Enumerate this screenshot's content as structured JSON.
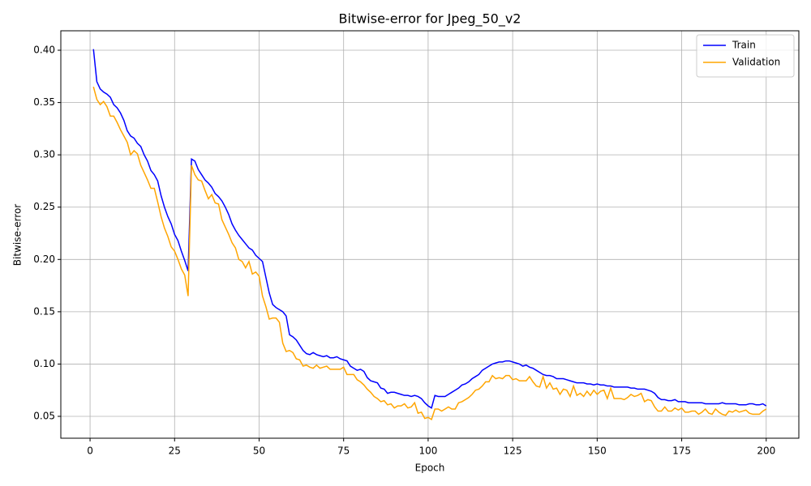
{
  "chart_data": {
    "type": "line",
    "title": "Bitwise-error for Jpeg_50_v2",
    "x_label": "Epoch",
    "y_label": "Bitwise-error",
    "grid": true,
    "legend": "upper right",
    "xlim": [
      -8.65,
      209.65
    ],
    "ylim": [
      0.0291,
      0.4186
    ],
    "xticks": [
      0,
      25,
      50,
      75,
      100,
      125,
      150,
      175,
      200
    ],
    "yticks": [
      0.05,
      {
        "value": 0.1,
        "label": "0.10"
      },
      0.15,
      {
        "value": 0.2,
        "label": "0.20"
      },
      0.25,
      {
        "value": 0.3,
        "label": "0.30"
      },
      0.35,
      {
        "value": 0.4,
        "label": "0.40"
      }
    ],
    "x": [
      1,
      2,
      3,
      4,
      5,
      6,
      7,
      8,
      9,
      10,
      11,
      12,
      13,
      14,
      15,
      16,
      17,
      18,
      19,
      20,
      21,
      22,
      23,
      24,
      25,
      26,
      27,
      28,
      29,
      30,
      31,
      32,
      33,
      34,
      35,
      36,
      37,
      38,
      39,
      40,
      41,
      42,
      43,
      44,
      45,
      46,
      47,
      48,
      49,
      50,
      51,
      52,
      53,
      54,
      55,
      56,
      57,
      58,
      59,
      60,
      61,
      62,
      63,
      64,
      65,
      66,
      67,
      68,
      69,
      70,
      71,
      72,
      73,
      74,
      75,
      76,
      77,
      78,
      79,
      80,
      81,
      82,
      83,
      84,
      85,
      86,
      87,
      88,
      89,
      90,
      91,
      92,
      93,
      94,
      95,
      96,
      97,
      98,
      99,
      100,
      101,
      102,
      103,
      104,
      105,
      106,
      107,
      108,
      109,
      110,
      111,
      112,
      113,
      114,
      115,
      116,
      117,
      118,
      119,
      120,
      121,
      122,
      123,
      124,
      125,
      126,
      127,
      128,
      129,
      130,
      131,
      132,
      133,
      134,
      135,
      136,
      137,
      138,
      139,
      140,
      141,
      142,
      143,
      144,
      145,
      146,
      147,
      148,
      149,
      150,
      151,
      152,
      153,
      154,
      155,
      156,
      157,
      158,
      159,
      160,
      161,
      162,
      163,
      164,
      165,
      166,
      167,
      168,
      169,
      170,
      171,
      172,
      173,
      174,
      175,
      176,
      177,
      178,
      179,
      180,
      181,
      182,
      183,
      184,
      185,
      186,
      187,
      188,
      189,
      190,
      191,
      192,
      193,
      194,
      195,
      196,
      197,
      198,
      199,
      200
    ],
    "series": [
      {
        "name": "Train",
        "color": "#0000ff",
        "values": [
          0.401,
          0.37,
          0.363,
          0.36,
          0.358,
          0.355,
          0.348,
          0.345,
          0.34,
          0.333,
          0.323,
          0.318,
          0.316,
          0.311,
          0.308,
          0.3,
          0.294,
          0.285,
          0.281,
          0.275,
          0.261,
          0.25,
          0.241,
          0.234,
          0.224,
          0.218,
          0.208,
          0.199,
          0.189,
          0.296,
          0.294,
          0.286,
          0.281,
          0.276,
          0.273,
          0.269,
          0.263,
          0.26,
          0.256,
          0.25,
          0.243,
          0.234,
          0.228,
          0.223,
          0.219,
          0.215,
          0.211,
          0.209,
          0.204,
          0.201,
          0.198,
          0.183,
          0.168,
          0.157,
          0.154,
          0.152,
          0.15,
          0.146,
          0.128,
          0.126,
          0.123,
          0.118,
          0.113,
          0.11,
          0.109,
          0.111,
          0.109,
          0.108,
          0.107,
          0.108,
          0.106,
          0.106,
          0.107,
          0.105,
          0.104,
          0.103,
          0.098,
          0.096,
          0.094,
          0.095,
          0.093,
          0.087,
          0.084,
          0.083,
          0.082,
          0.077,
          0.076,
          0.072,
          0.073,
          0.073,
          0.072,
          0.071,
          0.07,
          0.07,
          0.069,
          0.07,
          0.069,
          0.067,
          0.063,
          0.06,
          0.058,
          0.07,
          0.069,
          0.069,
          0.069,
          0.071,
          0.073,
          0.075,
          0.077,
          0.08,
          0.081,
          0.083,
          0.086,
          0.088,
          0.09,
          0.094,
          0.096,
          0.098,
          0.1,
          0.101,
          0.102,
          0.102,
          0.103,
          0.103,
          0.102,
          0.101,
          0.1,
          0.098,
          0.099,
          0.097,
          0.096,
          0.094,
          0.092,
          0.09,
          0.089,
          0.089,
          0.088,
          0.086,
          0.086,
          0.086,
          0.085,
          0.084,
          0.083,
          0.082,
          0.082,
          0.082,
          0.081,
          0.081,
          0.08,
          0.081,
          0.08,
          0.08,
          0.079,
          0.079,
          0.078,
          0.078,
          0.078,
          0.078,
          0.078,
          0.077,
          0.077,
          0.076,
          0.076,
          0.076,
          0.075,
          0.074,
          0.072,
          0.068,
          0.066,
          0.066,
          0.065,
          0.065,
          0.066,
          0.064,
          0.064,
          0.064,
          0.063,
          0.063,
          0.063,
          0.063,
          0.063,
          0.062,
          0.062,
          0.062,
          0.062,
          0.062,
          0.063,
          0.062,
          0.062,
          0.062,
          0.062,
          0.061,
          0.061,
          0.061,
          0.062,
          0.062,
          0.061,
          0.061,
          0.062,
          0.06
        ]
      },
      {
        "name": "Validation",
        "color": "#ffa500",
        "values": [
          0.365,
          0.353,
          0.348,
          0.351,
          0.346,
          0.337,
          0.337,
          0.331,
          0.324,
          0.318,
          0.312,
          0.3,
          0.304,
          0.301,
          0.29,
          0.283,
          0.276,
          0.268,
          0.268,
          0.255,
          0.241,
          0.23,
          0.222,
          0.212,
          0.208,
          0.2,
          0.191,
          0.185,
          0.165,
          0.29,
          0.281,
          0.276,
          0.275,
          0.266,
          0.258,
          0.262,
          0.254,
          0.253,
          0.238,
          0.231,
          0.224,
          0.216,
          0.211,
          0.2,
          0.198,
          0.192,
          0.198,
          0.186,
          0.188,
          0.184,
          0.165,
          0.155,
          0.143,
          0.144,
          0.144,
          0.14,
          0.12,
          0.112,
          0.113,
          0.111,
          0.105,
          0.104,
          0.098,
          0.099,
          0.097,
          0.096,
          0.099,
          0.096,
          0.097,
          0.098,
          0.095,
          0.095,
          0.095,
          0.095,
          0.097,
          0.09,
          0.09,
          0.09,
          0.085,
          0.083,
          0.08,
          0.076,
          0.073,
          0.069,
          0.067,
          0.064,
          0.065,
          0.061,
          0.062,
          0.058,
          0.06,
          0.06,
          0.062,
          0.058,
          0.059,
          0.063,
          0.053,
          0.054,
          0.048,
          0.049,
          0.047,
          0.057,
          0.057,
          0.055,
          0.057,
          0.059,
          0.057,
          0.057,
          0.063,
          0.064,
          0.066,
          0.068,
          0.071,
          0.075,
          0.076,
          0.079,
          0.083,
          0.083,
          0.089,
          0.086,
          0.087,
          0.086,
          0.089,
          0.089,
          0.085,
          0.086,
          0.084,
          0.084,
          0.084,
          0.088,
          0.083,
          0.079,
          0.078,
          0.088,
          0.077,
          0.082,
          0.076,
          0.077,
          0.071,
          0.076,
          0.075,
          0.069,
          0.079,
          0.07,
          0.072,
          0.069,
          0.074,
          0.07,
          0.075,
          0.071,
          0.074,
          0.075,
          0.067,
          0.077,
          0.067,
          0.067,
          0.067,
          0.066,
          0.068,
          0.071,
          0.069,
          0.07,
          0.072,
          0.064,
          0.066,
          0.065,
          0.059,
          0.055,
          0.055,
          0.059,
          0.055,
          0.055,
          0.058,
          0.056,
          0.058,
          0.054,
          0.054,
          0.055,
          0.055,
          0.052,
          0.054,
          0.057,
          0.053,
          0.052,
          0.057,
          0.054,
          0.052,
          0.051,
          0.055,
          0.054,
          0.056,
          0.054,
          0.055,
          0.056,
          0.053,
          0.052,
          0.052,
          0.052,
          0.055,
          0.057
        ]
      }
    ]
  }
}
